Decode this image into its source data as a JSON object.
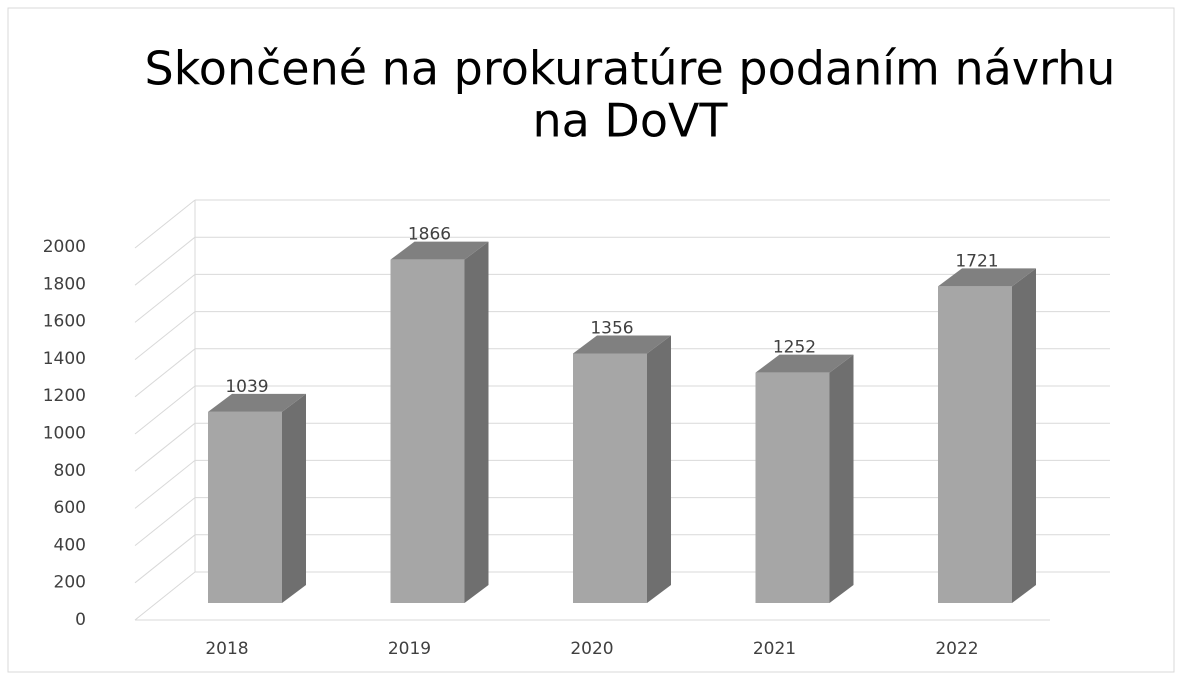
{
  "chart_data": {
    "type": "bar3d",
    "title": [
      "Skončené na prokuratúre podaním návrhu",
      "na DoVT"
    ],
    "categories": [
      "2018",
      "2019",
      "2020",
      "2021",
      "2022"
    ],
    "values": [
      1039,
      1866,
      1356,
      1252,
      1721
    ],
    "color": "#a6a6a6",
    "ylim": [
      0,
      2000
    ],
    "yticks": [
      0,
      200,
      400,
      600,
      800,
      1000,
      1200,
      1400,
      1600,
      1800,
      2000
    ],
    "grid": true
  }
}
